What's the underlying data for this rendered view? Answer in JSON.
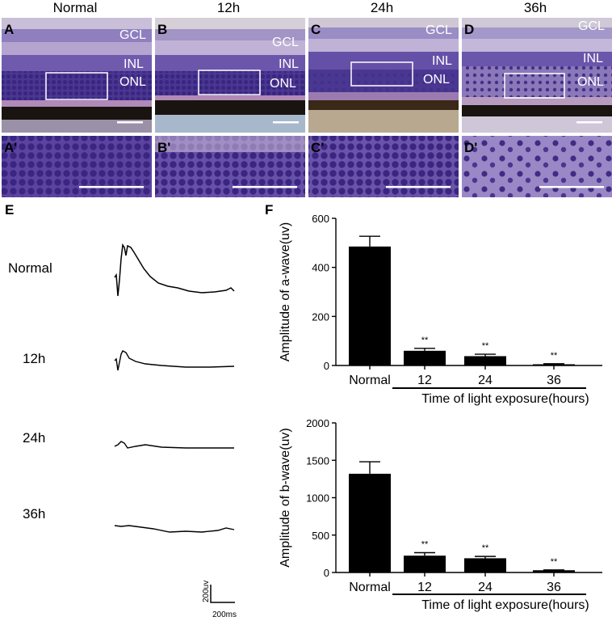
{
  "columns": [
    "Normal",
    "12h",
    "24h",
    "36h"
  ],
  "top_panel_letters": [
    "A",
    "B",
    "C",
    "D"
  ],
  "bottom_panel_letters": [
    "A'",
    "B'",
    "C'",
    "D'"
  ],
  "layer_labels": {
    "gcl": "GCL",
    "inl": "INL",
    "onl": "ONL"
  },
  "erg": {
    "letter": "E",
    "traces": [
      "Normal",
      "12h",
      "24h",
      "36h"
    ],
    "scale_v": "200uv",
    "scale_t": "200ms"
  },
  "bar_letter": "F",
  "colors": {
    "bar": "#000000",
    "tissue_purple": "#7a5aa8",
    "nuclei": "#3d2a86"
  },
  "chart_data": [
    {
      "type": "bar",
      "categories": [
        "Normal",
        "12",
        "24",
        "36"
      ],
      "values": [
        485,
        60,
        38,
        5
      ],
      "errors": [
        42,
        10,
        8,
        2
      ],
      "significance": [
        "",
        "**",
        "**",
        "**"
      ],
      "ylabel": "Amplitude of a-wave(uv)",
      "xlabel": "Time of light exposure(hours)",
      "ylim": [
        0,
        600
      ],
      "yticks": [
        0,
        200,
        400,
        600
      ]
    },
    {
      "type": "bar",
      "categories": [
        "Normal",
        "12",
        "24",
        "36"
      ],
      "values": [
        1320,
        225,
        190,
        30
      ],
      "errors": [
        160,
        40,
        25,
        5
      ],
      "significance": [
        "",
        "**",
        "**",
        "**"
      ],
      "ylabel": "Amplitude of b-wave(uv)",
      "xlabel": "Time of light exposure(hours)",
      "ylim": [
        0,
        2000
      ],
      "yticks": [
        0,
        500,
        1000,
        1500,
        2000
      ]
    }
  ]
}
